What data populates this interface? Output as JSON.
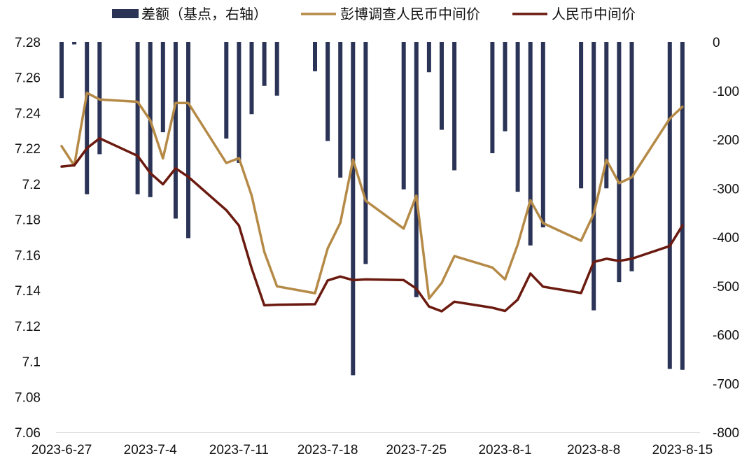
{
  "chart_data": {
    "type": "bar+line",
    "title": "",
    "xlabel": "",
    "ylabel": "",
    "legend_position": "top",
    "grid": false,
    "x_tick_labels": [
      "2023-6-27",
      "2023-7-4",
      "2023-7-11",
      "2023-7-18",
      "2023-7-25",
      "2023-8-1",
      "2023-8-8",
      "2023-8-15"
    ],
    "y_left": {
      "min": 7.06,
      "max": 7.28,
      "ticks": [
        "7.06",
        "7.08",
        "7.1",
        "7.12",
        "7.14",
        "7.16",
        "7.18",
        "7.2",
        "7.22",
        "7.24",
        "7.26",
        "7.28"
      ]
    },
    "y_right": {
      "min": -800,
      "max": 0,
      "ticks": [
        "-800",
        "-700",
        "-600",
        "-500",
        "-400",
        "-300",
        "-200",
        "-100",
        "0"
      ]
    },
    "x_dates": [
      "2023-6-27",
      "2023-6-28",
      "2023-6-29",
      "2023-6-30",
      "2023-7-3",
      "2023-7-4",
      "2023-7-5",
      "2023-7-6",
      "2023-7-7",
      "2023-7-10",
      "2023-7-11",
      "2023-7-12",
      "2023-7-13",
      "2023-7-14",
      "2023-7-17",
      "2023-7-18",
      "2023-7-19",
      "2023-7-20",
      "2023-7-21",
      "2023-7-24",
      "2023-7-25",
      "2023-7-26",
      "2023-7-27",
      "2023-7-28",
      "2023-7-31",
      "2023-8-1",
      "2023-8-2",
      "2023-8-3",
      "2023-8-4",
      "2023-8-7",
      "2023-8-8",
      "2023-8-9",
      "2023-8-10",
      "2023-8-11",
      "2023-8-14",
      "2023-8-15"
    ],
    "series": [
      {
        "name": "差额（基点，右轴）",
        "type": "bar",
        "axis": "right",
        "color": "#2b3457",
        "values": [
          -115,
          -5,
          -312,
          -230,
          -312,
          -318,
          -185,
          -362,
          -402,
          -198,
          -248,
          -148,
          -90,
          -110,
          -60,
          -203,
          -278,
          -683,
          -455,
          -302,
          -523,
          -62,
          -180,
          -263,
          -228,
          -183,
          -307,
          -417,
          -380,
          -300,
          -550,
          -300,
          -492,
          -470,
          -670,
          -672
        ]
      },
      {
        "name": "彭博调查人民币中间价",
        "type": "line",
        "axis": "left",
        "color": "#b58a47",
        "values": [
          7.2213,
          7.2103,
          7.2513,
          7.2476,
          7.2463,
          7.2358,
          7.2144,
          7.2456,
          7.2456,
          7.2118,
          7.2145,
          7.1935,
          7.1617,
          7.1423,
          7.1384,
          7.1636,
          7.1781,
          7.2137,
          7.1905,
          7.1748,
          7.1934,
          7.1354,
          7.1442,
          7.1593,
          7.1529,
          7.1462,
          7.1658,
          7.1908,
          7.1779,
          7.168,
          7.1831,
          7.2136,
          7.2004,
          7.2037,
          7.2368,
          7.2435
        ]
      },
      {
        "name": "人民币中间价",
        "type": "line",
        "axis": "left",
        "color": "#6b1a10",
        "values": [
          7.2098,
          7.2105,
          7.2201,
          7.2257,
          7.2158,
          7.2061,
          7.1998,
          7.2088,
          7.204,
          7.1852,
          7.1765,
          7.1524,
          7.1316,
          7.1319,
          7.1322,
          7.1456,
          7.1478,
          7.1458,
          7.1462,
          7.1458,
          7.141,
          7.1309,
          7.1282,
          7.1336,
          7.1302,
          7.1284,
          7.1348,
          7.1495,
          7.1421,
          7.1385,
          7.156,
          7.1578,
          7.1566,
          7.1578,
          7.165,
          7.1766
        ]
      }
    ]
  }
}
